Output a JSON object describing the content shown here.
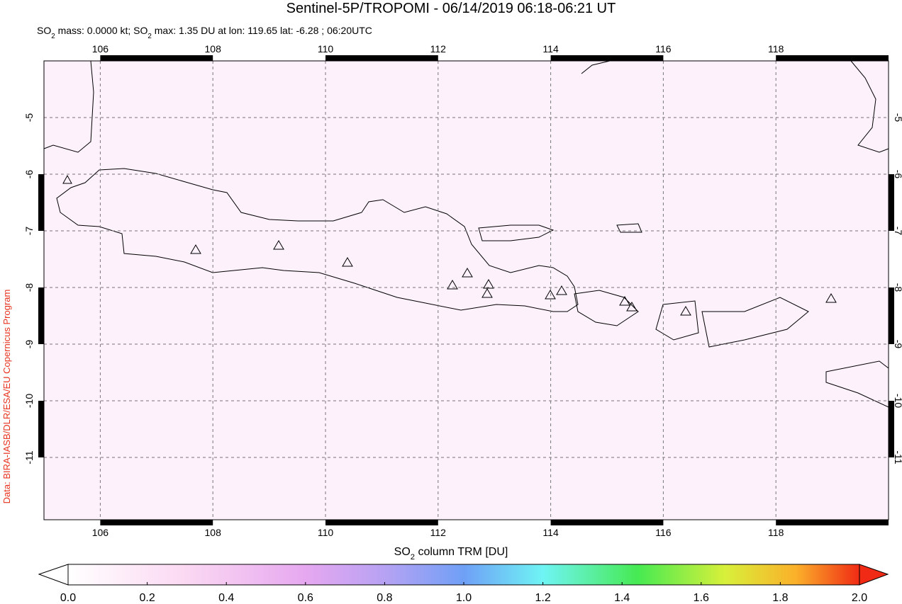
{
  "title": "Sentinel-5P/TROPOMI - 06/14/2019 06:18-06:21 UT",
  "subtitle_parts": [
    "SO",
    "2",
    " mass: 0.0000 kt; SO",
    "2",
    " max: 1.35 DU at lon: 119.65 lat: -6.28 ; 06:20UTC"
  ],
  "credit": "Data: BIRA-IASB/DLR/ESA/EU Copernicus Program",
  "map": {
    "type": "map",
    "xlim": [
      105,
      120
    ],
    "ylim": [
      -12.1,
      -4
    ],
    "xticks": [
      106,
      108,
      110,
      112,
      114,
      116,
      118
    ],
    "yticks": [
      -5,
      -6,
      -7,
      -8,
      -9,
      -10,
      -11
    ],
    "grid": true
  },
  "colorbar": {
    "label_parts": [
      "SO",
      "2",
      " column TRM [DU]"
    ],
    "lim": [
      0,
      2
    ],
    "ticks": [
      {
        "value": 0,
        "label": "0.0"
      },
      {
        "value": 0.2,
        "label": "0.2"
      },
      {
        "value": 0.4,
        "label": "0.4"
      },
      {
        "value": 0.6,
        "label": "0.6"
      },
      {
        "value": 0.8,
        "label": "0.8"
      },
      {
        "value": 1,
        "label": "1.0"
      },
      {
        "value": 1.2,
        "label": "1.2"
      },
      {
        "value": 1.4,
        "label": "1.4"
      },
      {
        "value": 1.6,
        "label": "1.6"
      },
      {
        "value": 1.8,
        "label": "1.8"
      },
      {
        "value": 2,
        "label": "2.0"
      }
    ]
  }
}
